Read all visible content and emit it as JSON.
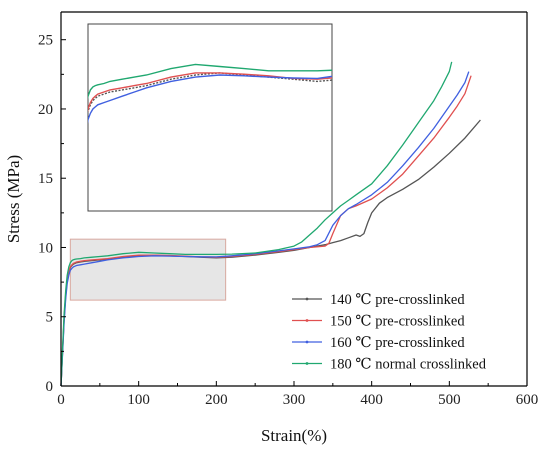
{
  "chart_data": {
    "type": "line",
    "xlabel": "Strain(%)",
    "ylabel": "Stress (MPa)",
    "xlim": [
      0,
      600
    ],
    "ylim": [
      0,
      27
    ],
    "x_ticks": [
      0,
      100,
      200,
      300,
      400,
      500,
      600
    ],
    "y_ticks": [
      0,
      5,
      10,
      15,
      20,
      25
    ],
    "x_tick_labels": [
      "0",
      "100",
      "200",
      "300",
      "400",
      "500",
      "600"
    ],
    "y_tick_labels": [
      "0",
      "5",
      "10",
      "15",
      "20",
      "25"
    ],
    "grid": false,
    "legend_position": "bottom-right",
    "highlight_region": {
      "x": [
        12,
        212
      ],
      "y": [
        6.2,
        10.6
      ],
      "fill": "#e6e6e6",
      "stroke": "#d9a9a0"
    },
    "inset": {
      "source_region": "highlight_region",
      "ylim": [
        6.2,
        10.6
      ],
      "xlim": [
        12,
        212
      ]
    },
    "series": [
      {
        "name": "140 ℃ pre-crosslinked",
        "color": "#555555",
        "x": [
          0,
          2,
          4,
          6,
          8,
          10,
          12,
          14,
          16,
          18,
          20,
          25,
          30,
          40,
          50,
          60,
          80,
          100,
          120,
          140,
          160,
          180,
          200,
          220,
          250,
          280,
          300,
          320,
          340,
          350,
          360,
          370,
          380,
          385,
          390,
          395,
          400,
          410,
          420,
          440,
          460,
          480,
          500,
          520,
          540
        ],
        "y": [
          0,
          2.5,
          4.8,
          6.5,
          7.6,
          8.2,
          8.55,
          8.7,
          8.8,
          8.85,
          8.9,
          8.95,
          9.0,
          9.05,
          9.1,
          9.15,
          9.3,
          9.4,
          9.45,
          9.4,
          9.35,
          9.3,
          9.25,
          9.3,
          9.45,
          9.65,
          9.8,
          10.0,
          10.2,
          10.35,
          10.5,
          10.7,
          10.9,
          10.8,
          11.0,
          11.8,
          12.5,
          13.2,
          13.6,
          14.2,
          14.9,
          15.8,
          16.8,
          17.9,
          19.2
        ]
      },
      {
        "name": "150 ℃ pre-crosslinked",
        "color": "#e05050",
        "x": [
          0,
          2,
          4,
          6,
          8,
          10,
          12,
          14,
          16,
          18,
          20,
          25,
          30,
          40,
          50,
          60,
          80,
          100,
          120,
          140,
          160,
          180,
          200,
          220,
          250,
          280,
          300,
          320,
          340,
          345,
          350,
          360,
          370,
          380,
          400,
          420,
          440,
          460,
          480,
          500,
          510,
          520,
          528
        ],
        "y": [
          0,
          2.6,
          4.9,
          6.6,
          7.7,
          8.3,
          8.6,
          8.75,
          8.85,
          8.9,
          8.95,
          9.0,
          9.05,
          9.1,
          9.15,
          9.2,
          9.35,
          9.45,
          9.45,
          9.42,
          9.38,
          9.32,
          9.3,
          9.35,
          9.5,
          9.7,
          9.85,
          10.0,
          10.1,
          10.3,
          11.0,
          12.3,
          12.8,
          13.0,
          13.5,
          14.3,
          15.3,
          16.6,
          17.9,
          19.4,
          20.2,
          21.1,
          22.4
        ]
      },
      {
        "name": "160 ℃ pre-crosslinked",
        "color": "#4060e0",
        "x": [
          0,
          2,
          4,
          6,
          8,
          10,
          12,
          14,
          16,
          18,
          20,
          25,
          30,
          40,
          50,
          60,
          80,
          100,
          120,
          140,
          160,
          180,
          200,
          220,
          250,
          280,
          300,
          320,
          330,
          340,
          350,
          360,
          370,
          380,
          400,
          420,
          440,
          460,
          480,
          500,
          510,
          520,
          525
        ],
        "y": [
          0,
          2.4,
          4.6,
          6.3,
          7.4,
          8.0,
          8.35,
          8.5,
          8.6,
          8.65,
          8.7,
          8.75,
          8.8,
          8.9,
          9.0,
          9.1,
          9.25,
          9.35,
          9.4,
          9.38,
          9.35,
          9.33,
          9.32,
          9.4,
          9.55,
          9.75,
          9.9,
          10.05,
          10.2,
          10.5,
          11.6,
          12.3,
          12.8,
          13.1,
          13.8,
          14.7,
          15.9,
          17.2,
          18.6,
          20.2,
          21.0,
          21.9,
          22.7
        ]
      },
      {
        "name": "180 ℃ normal crosslinked",
        "color": "#20a870",
        "x": [
          0,
          2,
          4,
          6,
          8,
          10,
          12,
          14,
          16,
          18,
          20,
          25,
          30,
          40,
          50,
          60,
          80,
          100,
          120,
          140,
          160,
          180,
          200,
          220,
          250,
          280,
          300,
          310,
          320,
          330,
          340,
          350,
          360,
          370,
          380,
          400,
          420,
          440,
          460,
          480,
          490,
          500,
          503
        ],
        "y": [
          0,
          2.8,
          5.2,
          6.9,
          8.0,
          8.6,
          8.9,
          9.05,
          9.12,
          9.15,
          9.17,
          9.2,
          9.25,
          9.3,
          9.35,
          9.4,
          9.55,
          9.65,
          9.6,
          9.55,
          9.5,
          9.5,
          9.5,
          9.52,
          9.6,
          9.85,
          10.1,
          10.4,
          10.9,
          11.4,
          12.0,
          12.5,
          13.0,
          13.4,
          13.8,
          14.6,
          15.9,
          17.4,
          19.0,
          20.6,
          21.6,
          22.7,
          23.4
        ]
      }
    ]
  }
}
